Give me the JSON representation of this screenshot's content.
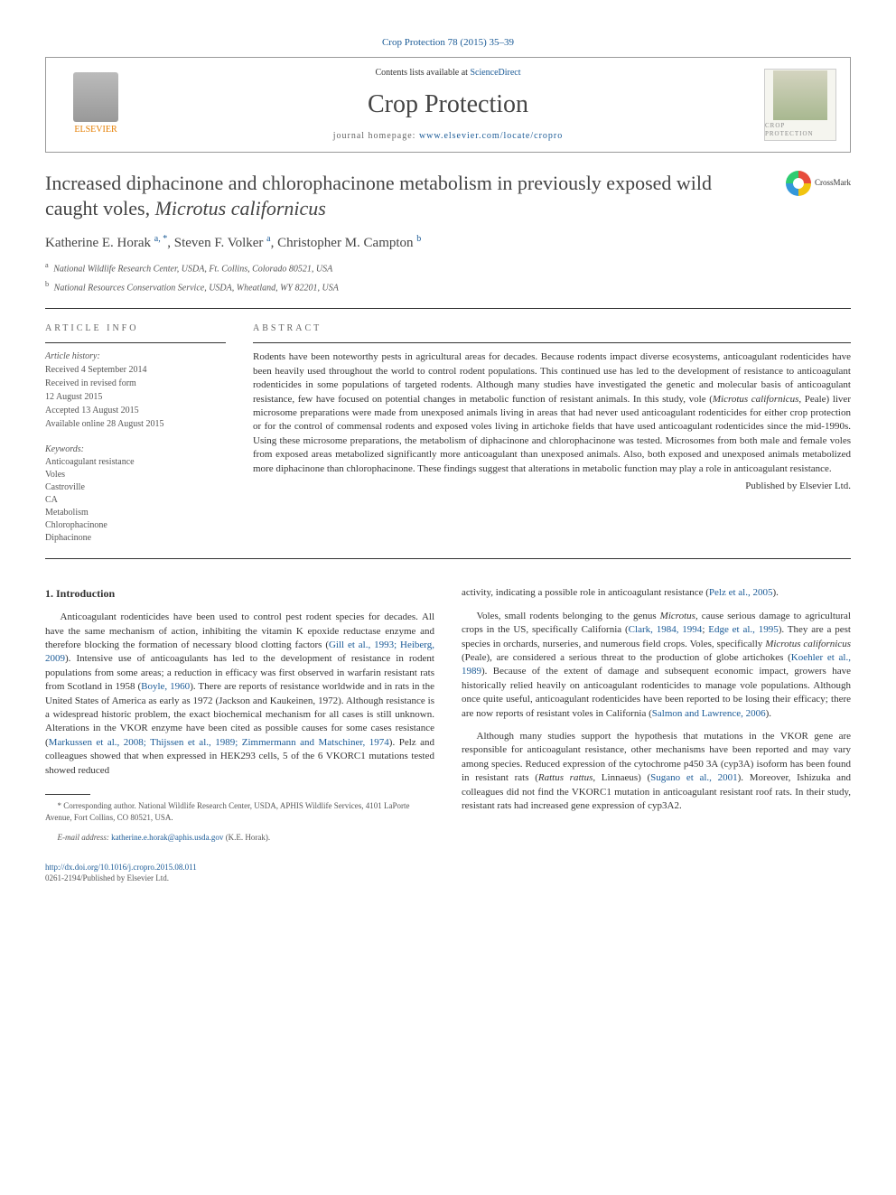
{
  "journal_ref": "Crop Protection 78 (2015) 35–39",
  "header": {
    "contents_prefix": "Contents lists available at ",
    "contents_link": "ScienceDirect",
    "journal_name": "Crop Protection",
    "homepage_prefix": "journal homepage: ",
    "homepage_url": "www.elsevier.com/locate/cropro",
    "publisher_logo": "ELSEVIER",
    "cover_caption": "CROP PROTECTION"
  },
  "crossmark": "CrossMark",
  "title_pre": "Increased diphacinone and chlorophacinone metabolism in previously exposed wild caught voles, ",
  "title_species": "Microtus californicus",
  "authors_html": "Katherine E. Horak <sup>a, *</sup>, Steven F. Volker <sup>a</sup>, Christopher M. Campton <sup>b</sup>",
  "affiliations": [
    {
      "sup": "a",
      "text": "National Wildlife Research Center, USDA, Ft. Collins, Colorado 80521, USA"
    },
    {
      "sup": "b",
      "text": "National Resources Conservation Service, USDA, Wheatland, WY 82201, USA"
    }
  ],
  "article_info": {
    "heading": "ARTICLE INFO",
    "history_label": "Article history:",
    "history": [
      "Received 4 September 2014",
      "Received in revised form",
      "12 August 2015",
      "Accepted 13 August 2015",
      "Available online 28 August 2015"
    ],
    "keywords_label": "Keywords:",
    "keywords": [
      "Anticoagulant resistance",
      "Voles",
      "Castroville",
      "CA",
      "Metabolism",
      "Chlorophacinone",
      "Diphacinone"
    ]
  },
  "abstract": {
    "heading": "ABSTRACT",
    "text": "Rodents have been noteworthy pests in agricultural areas for decades. Because rodents impact diverse ecosystems, anticoagulant rodenticides have been heavily used throughout the world to control rodent populations. This continued use has led to the development of resistance to anticoagulant rodenticides in some populations of targeted rodents. Although many studies have investigated the genetic and molecular basis of anticoagulant resistance, few have focused on potential changes in metabolic function of resistant animals. In this study, vole (Microtus californicus, Peale) liver microsome preparations were made from unexposed animals living in areas that had never used anticoagulant rodenticides for either crop protection or for the control of commensal rodents and exposed voles living in artichoke fields that have used anticoagulant rodenticides since the mid-1990s. Using these microsome preparations, the metabolism of diphacinone and chlorophacinone was tested. Microsomes from both male and female voles from exposed areas metabolized significantly more anticoagulant than unexposed animals. Also, both exposed and unexposed animals metabolized more diphacinone than chlorophacinone. These findings suggest that alterations in metabolic function may play a role in anticoagulant resistance.",
    "publisher": "Published by Elsevier Ltd."
  },
  "sections": {
    "intro_heading": "1. Introduction"
  },
  "left_paras": [
    "Anticoagulant rodenticides have been used to control pest rodent species for decades. All have the same mechanism of action, inhibiting the vitamin K epoxide reductase enzyme and therefore blocking the formation of necessary blood clotting factors (<a class='ref' href='#'>Gill et al., 1993; Heiberg, 2009</a>). Intensive use of anticoagulants has led to the development of resistance in rodent populations from some areas; a reduction in efficacy was first observed in warfarin resistant rats from Scotland in 1958 (<a class='ref' href='#'>Boyle, 1960</a>). There are reports of resistance worldwide and in rats in the United States of America as early as 1972 (Jackson and Kaukeinen, 1972). Although resistance is a widespread historic problem, the exact biochemical mechanism for all cases is still unknown. Alterations in the VKOR enzyme have been cited as possible causes for some cases resistance (<a class='ref' href='#'>Markussen et al., 2008; Thijssen et al., 1989; Zimmermann and Matschiner, 1974</a>). Pelz and colleagues showed that when expressed in HEK293 cells, 5 of the 6 VKORC1 mutations tested showed reduced"
  ],
  "right_paras": [
    "activity, indicating a possible role in anticoagulant resistance (<a class='ref' href='#'>Pelz et al., 2005</a>).",
    "Voles, small rodents belonging to the genus <em>Microtus</em>, cause serious damage to agricultural crops in the US, specifically California (<a class='ref' href='#'>Clark, 1984, 1994</a>; <a class='ref' href='#'>Edge et al., 1995</a>). They are a pest species in orchards, nurseries, and numerous field crops. Voles, specifically <em>Microtus californicus</em> (Peale), are considered a serious threat to the production of globe artichokes (<a class='ref' href='#'>Koehler et al., 1989</a>). Because of the extent of damage and subsequent economic impact, growers have historically relied heavily on anticoagulant rodenticides to manage vole populations. Although once quite useful, anticoagulant rodenticides have been reported to be losing their efficacy; there are now reports of resistant voles in California (<a class='ref' href='#'>Salmon and Lawrence, 2006</a>).",
    "Although many studies support the hypothesis that mutations in the VKOR gene are responsible for anticoagulant resistance, other mechanisms have been reported and may vary among species. Reduced expression of the cytochrome p450 3A (cyp3A) isoform has been found in resistant rats (<em>Rattus rattus</em>, Linnaeus) (<a class='ref' href='#'>Sugano et al., 2001</a>). Moreover, Ishizuka and colleagues did not find the VKORC1 mutation in anticoagulant resistant roof rats. In their study, resistant rats had increased gene expression of cyp3A2."
  ],
  "footnote": {
    "corresponding": "* Corresponding author. National Wildlife Research Center, USDA, APHIS Wildlife Services, 4101 LaPorte Avenue, Fort Collins, CO 80521, USA.",
    "email_label": "E-mail address: ",
    "email": "katherine.e.horak@aphis.usda.gov",
    "email_suffix": " (K.E. Horak)."
  },
  "footer": {
    "doi": "http://dx.doi.org/10.1016/j.cropro.2015.08.011",
    "issn": "0261-2194/Published by Elsevier Ltd."
  }
}
